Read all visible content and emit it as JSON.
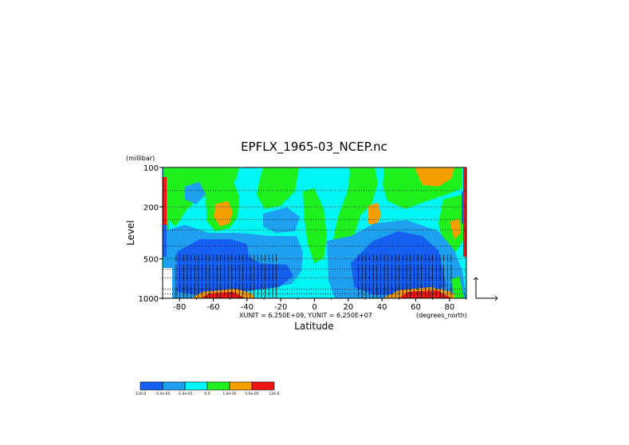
{
  "chart_data": {
    "type": "heatmap",
    "title": "EPFLX_1965-03_NCEP.nc",
    "xlabel": "Latitude",
    "ylabel": "Level",
    "yunit": "(millibar)",
    "xunit_label": "(degrees_north)",
    "vector_units": "XUNIT = 6.250E+09, YUNIT = 6.250E+07",
    "xlim": [
      -90,
      90
    ],
    "ylim": [
      1000,
      100
    ],
    "y_scale": "log",
    "x_ticks": [
      "-80",
      "-60",
      "-40",
      "-20",
      "0",
      "20",
      "40",
      "60",
      "80"
    ],
    "x_tick_values": [
      -80,
      -60,
      -40,
      -20,
      0,
      20,
      40,
      60,
      80
    ],
    "y_ticks": [
      "100",
      "200",
      "500",
      "1000"
    ],
    "y_tick_values": [
      100,
      200,
      500,
      1000
    ],
    "pressure_levels": [
      100,
      150,
      200,
      250,
      300,
      400,
      500,
      600,
      700,
      850,
      925,
      1000
    ],
    "grid": "dotted horizontal lines at pressure levels",
    "colorbar": {
      "labels": [
        "-120.0",
        "-5.0e-05",
        "-1.0e-05",
        "0.0",
        "1.0e-05",
        "5.0e-05",
        "120.0"
      ],
      "colors": [
        "#1560f0",
        "#1ea0f0",
        "#00f5f5",
        "#1ef01e",
        "#f5a000",
        "#f01414"
      ]
    }
  }
}
